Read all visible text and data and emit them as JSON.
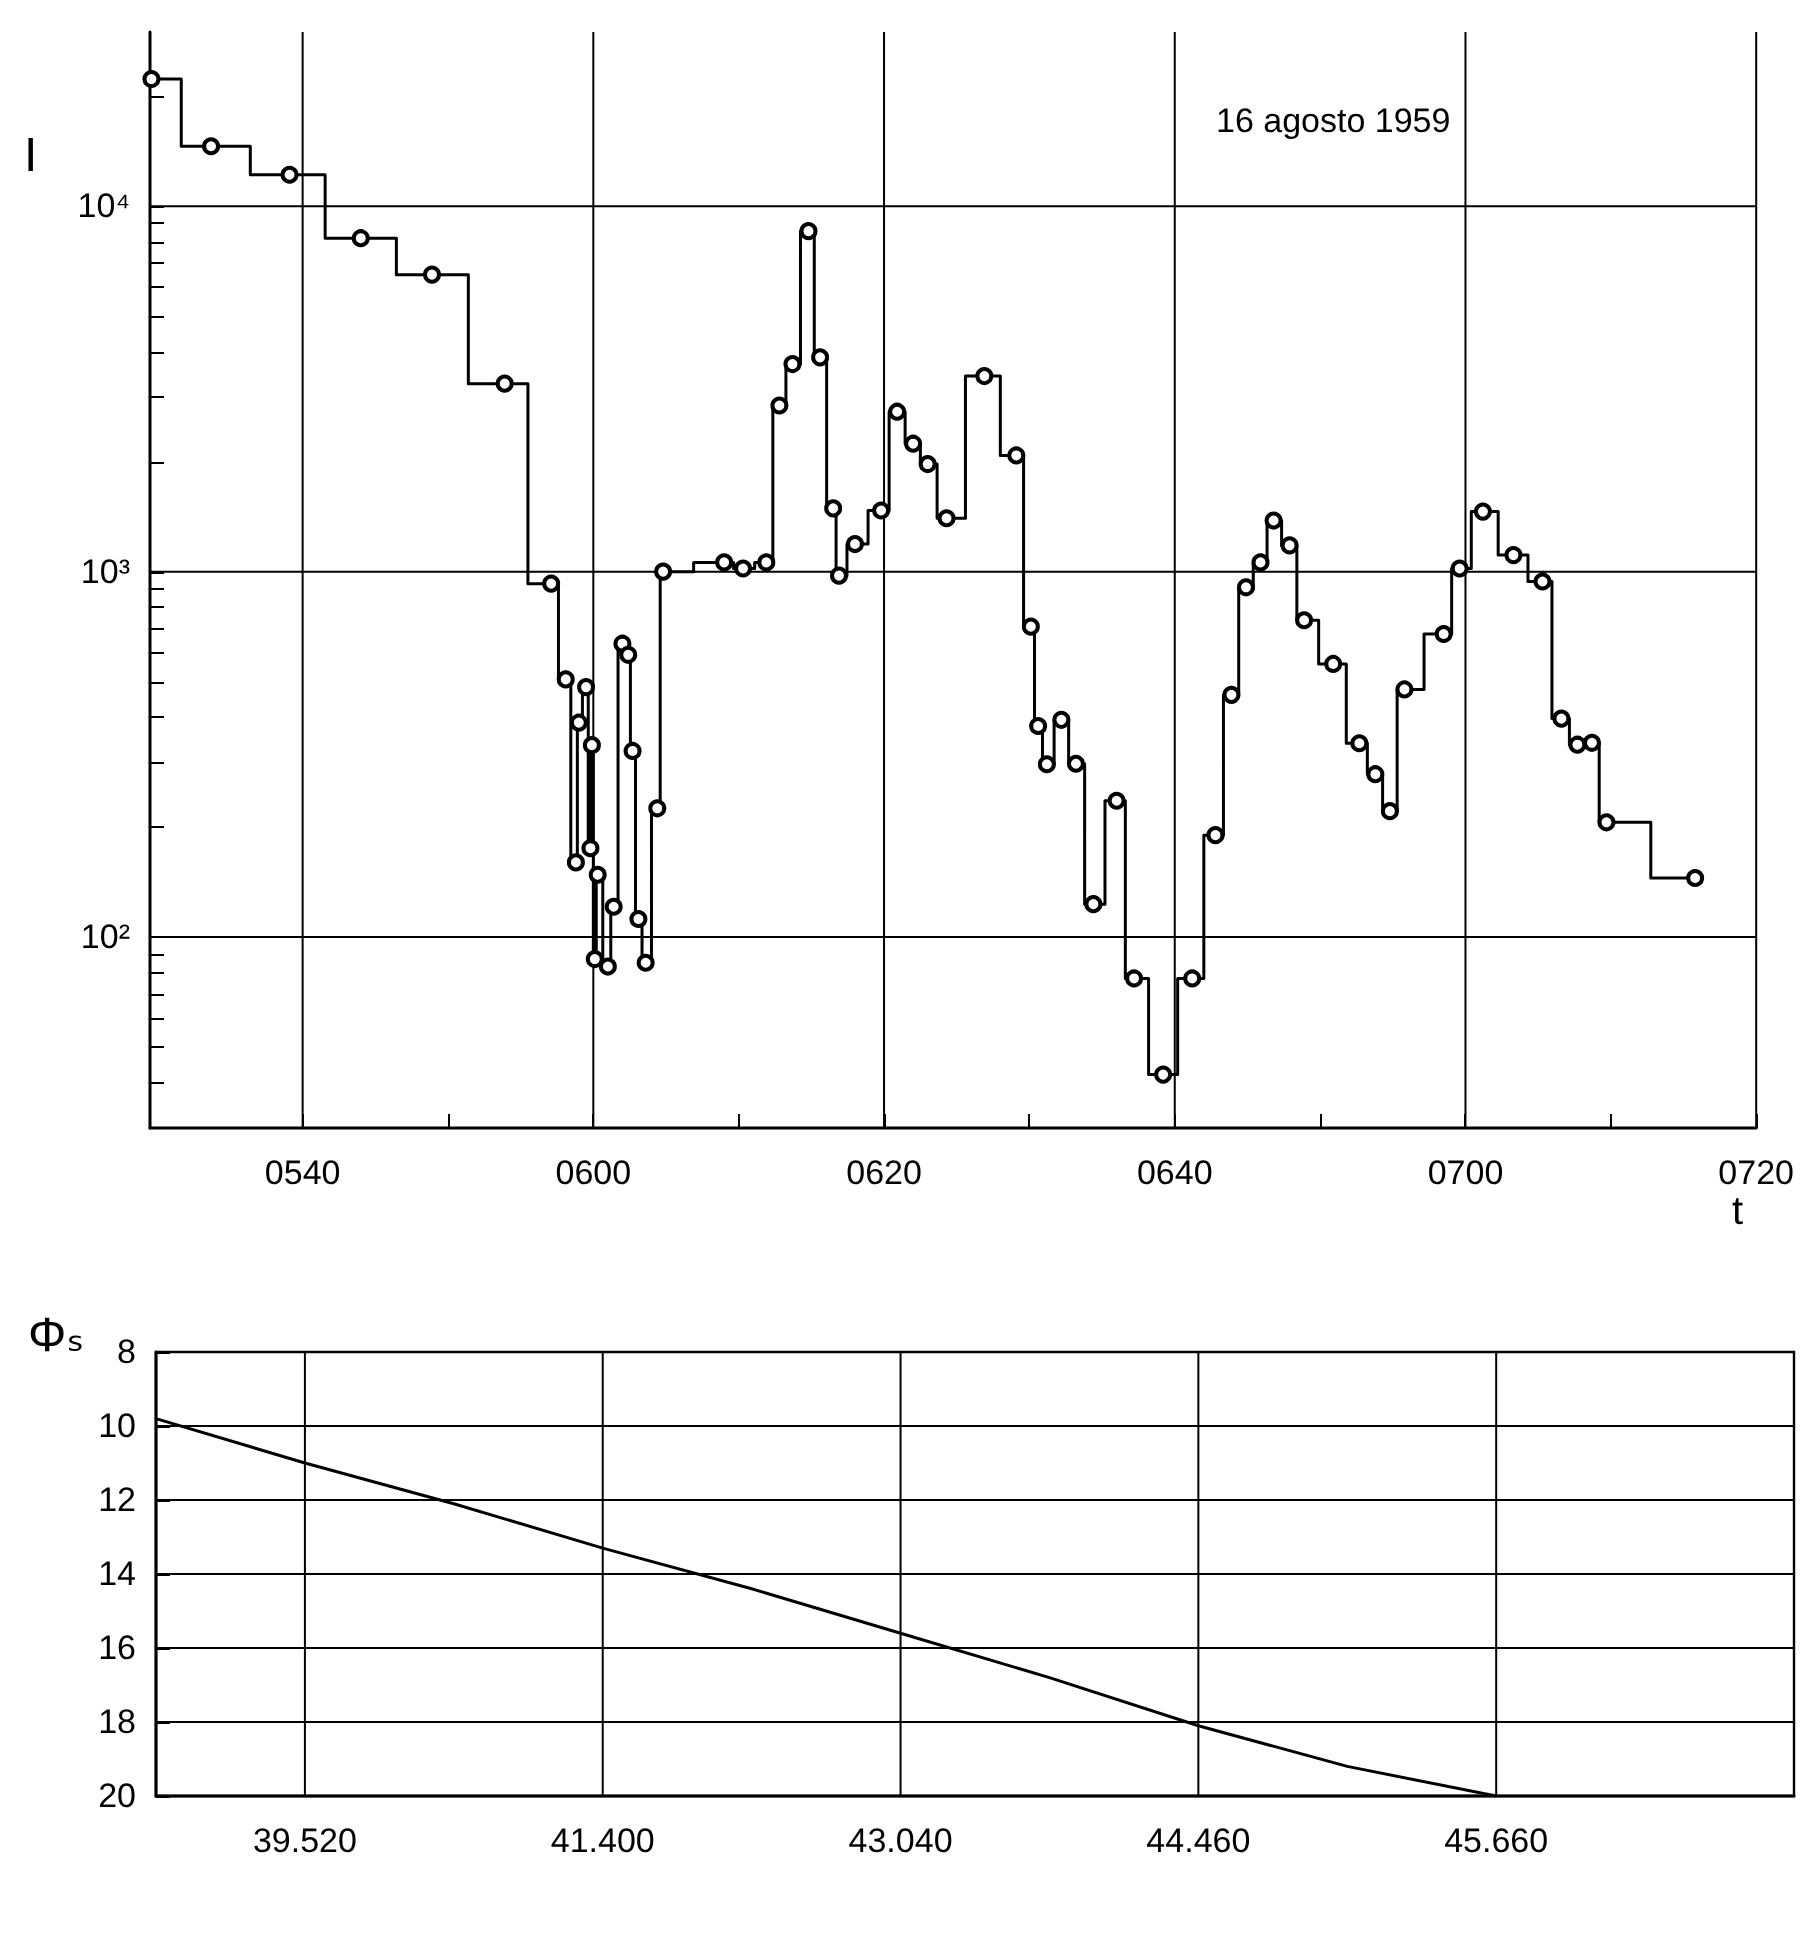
{
  "chart_data": [
    {
      "type": "step",
      "xlabel": "t",
      "ylabel": "I",
      "annotations": [
        "16 agosto 1959"
      ],
      "color": "#000000",
      "marker": "circle",
      "log": "y",
      "grid": true,
      "xlim": [
        "1959-08-16T05:29:30",
        "1959-08-16T07:20"
      ],
      "ylim": [
        30,
        30000
      ],
      "xticks": [
        {
          "value": "1959-08-16T05:40",
          "label": "0540"
        },
        {
          "value": "1959-08-16T05:50",
          "label": null
        },
        {
          "value": "1959-08-16T06:00",
          "label": "0600"
        },
        {
          "value": "1959-08-16T06:10",
          "label": null
        },
        {
          "value": "1959-08-16T06:20",
          "label": "0620"
        },
        {
          "value": "1959-08-16T06:30",
          "label": null
        },
        {
          "value": "1959-08-16T06:40",
          "label": "0640"
        },
        {
          "value": "1959-08-16T06:50",
          "label": null
        },
        {
          "value": "1959-08-16T07:00",
          "label": "0700"
        },
        {
          "value": "1959-08-16T07:10",
          "label": null
        },
        {
          "value": "1959-08-16T07:20",
          "label": "0720"
        }
      ],
      "yticks": [
        {
          "value": 40,
          "label": null
        },
        {
          "value": 50,
          "label": null
        },
        {
          "value": 60,
          "label": null
        },
        {
          "value": 70,
          "label": null
        },
        {
          "value": 80,
          "label": null
        },
        {
          "value": 90,
          "label": null
        },
        {
          "value": 100,
          "label": "10²"
        },
        {
          "value": 200,
          "label": null
        },
        {
          "value": 300,
          "label": null
        },
        {
          "value": 400,
          "label": null
        },
        {
          "value": 500,
          "label": null
        },
        {
          "value": 600,
          "label": null
        },
        {
          "value": 700,
          "label": null
        },
        {
          "value": 800,
          "label": null
        },
        {
          "value": 900,
          "label": null
        },
        {
          "value": 1000,
          "label": "10³"
        },
        {
          "value": 2000,
          "label": null
        },
        {
          "value": 3000,
          "label": null
        },
        {
          "value": 4000,
          "label": null
        },
        {
          "value": 5000,
          "label": null
        },
        {
          "value": 6000,
          "label": null
        },
        {
          "value": 7000,
          "label": null
        },
        {
          "value": 8000,
          "label": null
        },
        {
          "value": 9000,
          "label": null
        },
        {
          "value": 10000,
          "label": "10⁴"
        },
        {
          "value": 20000,
          "label": null
        }
      ],
      "x": [
        "1959-08-16T05:29:36",
        "1959-08-16T05:33:42",
        "1959-08-16T05:39:06",
        "1959-08-16T05:44:00",
        "1959-08-16T05:48:54",
        "1959-08-16T05:53:54",
        "1959-08-16T05:57:06",
        "1959-08-16T05:58:06",
        "1959-08-16T05:58:48",
        "1959-08-16T05:59:00",
        "1959-08-16T05:59:30",
        "1959-08-16T05:59:48",
        "1959-08-16T05:59:54",
        "1959-08-16T06:00:06",
        "1959-08-16T06:00:18",
        "1959-08-16T06:01:00",
        "1959-08-16T06:01:24",
        "1959-08-16T06:02:00",
        "1959-08-16T06:02:24",
        "1959-08-16T06:02:42",
        "1959-08-16T06:03:06",
        "1959-08-16T06:03:36",
        "1959-08-16T06:04:24",
        "1959-08-16T06:04:48",
        "1959-08-16T06:09:00",
        "1959-08-16T06:10:18",
        "1959-08-16T06:11:54",
        "1959-08-16T06:12:48",
        "1959-08-16T06:13:42",
        "1959-08-16T06:14:48",
        "1959-08-16T06:15:36",
        "1959-08-16T06:16:30",
        "1959-08-16T06:16:54",
        "1959-08-16T06:18:00",
        "1959-08-16T06:19:48",
        "1959-08-16T06:20:54",
        "1959-08-16T06:22:00",
        "1959-08-16T06:23:00",
        "1959-08-16T06:24:18",
        "1959-08-16T06:26:54",
        "1959-08-16T06:29:06",
        "1959-08-16T06:30:06",
        "1959-08-16T06:30:36",
        "1959-08-16T06:31:12",
        "1959-08-16T06:32:12",
        "1959-08-16T06:33:12",
        "1959-08-16T06:34:24",
        "1959-08-16T06:36:00",
        "1959-08-16T06:37:12",
        "1959-08-16T06:39:12",
        "1959-08-16T06:41:12",
        "1959-08-16T06:42:48",
        "1959-08-16T06:43:54",
        "1959-08-16T06:44:54",
        "1959-08-16T06:45:54",
        "1959-08-16T06:46:48",
        "1959-08-16T06:47:54",
        "1959-08-16T06:48:54",
        "1959-08-16T06:50:54",
        "1959-08-16T06:52:42",
        "1959-08-16T06:53:48",
        "1959-08-16T06:54:48",
        "1959-08-16T06:55:48",
        "1959-08-16T06:58:30",
        "1959-08-16T06:59:36",
        "1959-08-16T07:01:12",
        "1959-08-16T07:03:18",
        "1959-08-16T07:05:18",
        "1959-08-16T07:06:36",
        "1959-08-16T07:07:42",
        "1959-08-16T07:08:42",
        "1959-08-16T07:09:42",
        "1959-08-16T07:15:48"
      ],
      "values": [
        22300,
        14600,
        12200,
        8180,
        6500,
        3270,
        927,
        507,
        160,
        386,
        483,
        175,
        335,
        87,
        148,
        83,
        121,
        635,
        592,
        323,
        112,
        85,
        225,
        1000,
        1060,
        1020,
        1060,
        2850,
        3700,
        8550,
        3860,
        1490,
        975,
        1190,
        1470,
        2740,
        2240,
        1970,
        1400,
        3430,
        2080,
        707,
        378,
        297,
        393,
        298,
        123,
        236,
        77,
        42,
        77,
        190,
        460,
        906,
        1060,
        1380,
        1180,
        736,
        559,
        339,
        279,
        221,
        476,
        675,
        1020,
        1460,
        1110,
        940,
        396,
        336,
        340,
        206,
        145
      ]
    },
    {
      "type": "line",
      "ylabel": "Φₛ",
      "color": "#000000",
      "grid": true,
      "categories": [
        null,
        "39.520",
        null,
        "41.400",
        null,
        "43.040",
        null,
        "44.460",
        null,
        "45.660",
        null,
        null
      ],
      "ylim": [
        20,
        8
      ],
      "yticks": [
        8,
        10,
        12,
        14,
        16,
        18,
        20
      ],
      "values": [
        9.8,
        11.0,
        12.1,
        13.3,
        14.4,
        15.6,
        16.8,
        18.1,
        19.2,
        20,
        null,
        null
      ]
    }
  ]
}
